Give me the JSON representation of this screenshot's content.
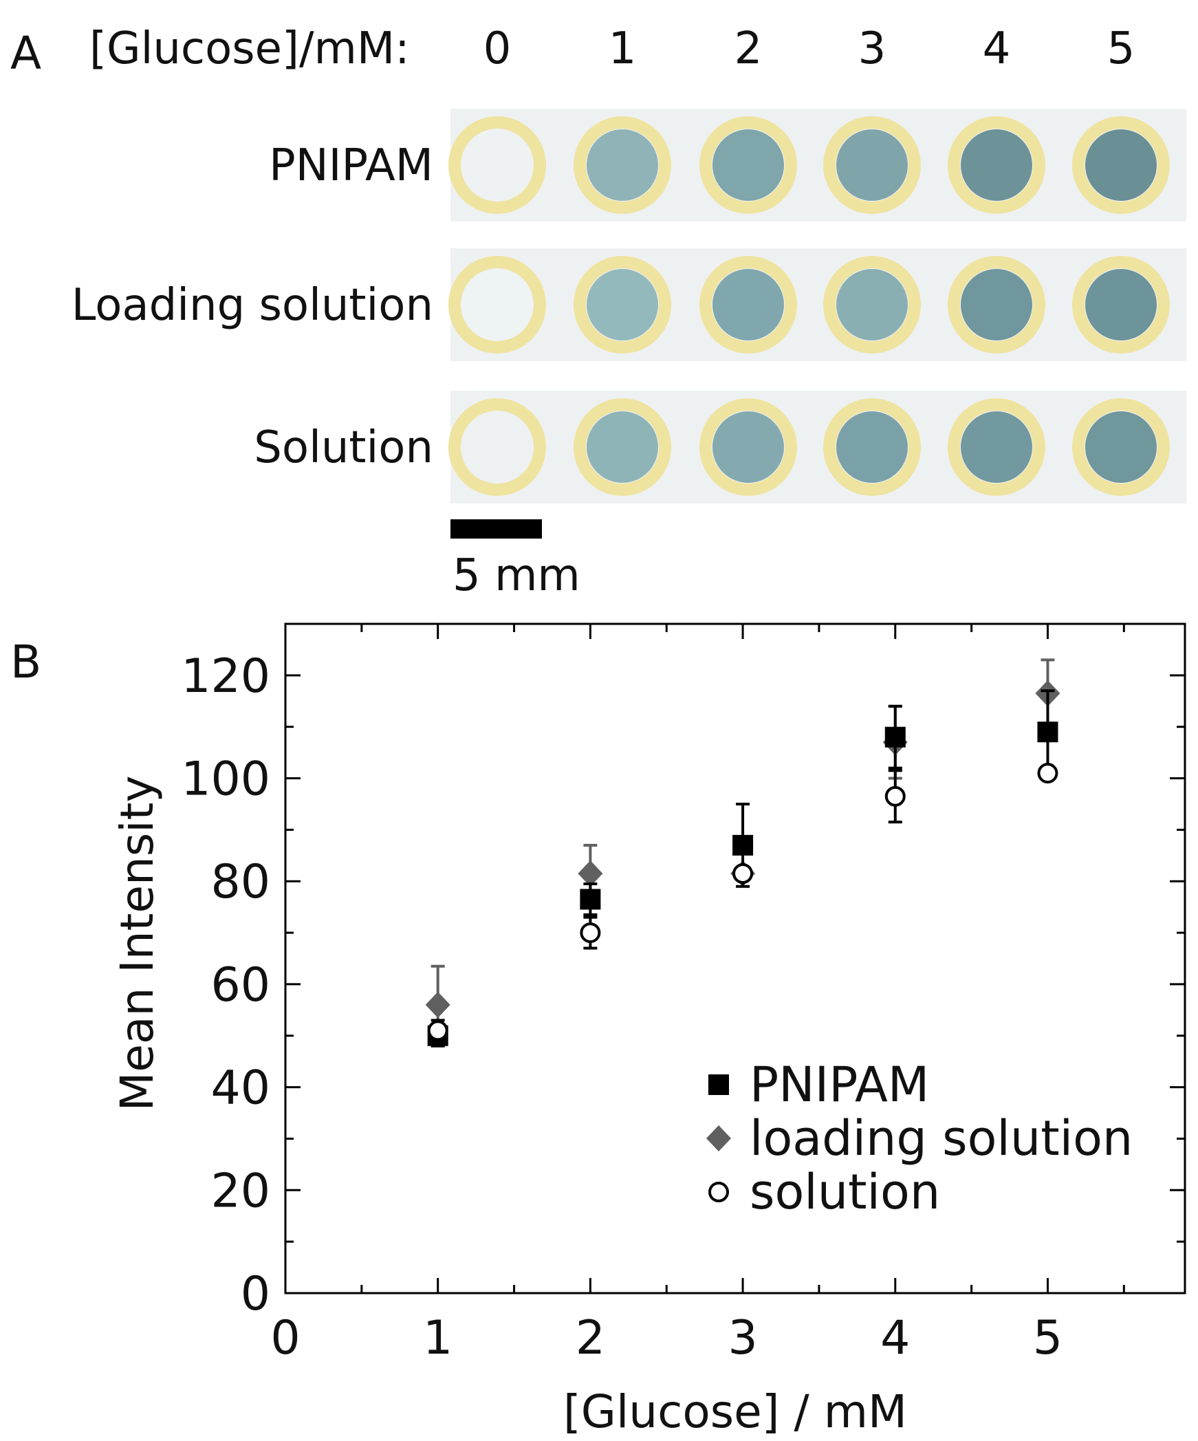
{
  "panel_a": {
    "letter": "A",
    "header_label": "[Glucose]/mM:",
    "concentrations": [
      "0",
      "1",
      "2",
      "3",
      "4",
      "5"
    ],
    "rows": [
      {
        "label": "PNIPAM",
        "spot_colors": [
          "#eef2f2",
          "#8fb3b7",
          "#7ea6ab",
          "#7fa5aa",
          "#6d9399",
          "#6a8f95"
        ]
      },
      {
        "label": "Loading solution",
        "spot_colors": [
          "#eef3f3",
          "#93b9bc",
          "#7fa7ad",
          "#89afb3",
          "#6f979d",
          "#6c949a"
        ]
      },
      {
        "label": "Solution",
        "spot_colors": [
          "#edf1f1",
          "#8fb4b8",
          "#84aab0",
          "#7aa1a7",
          "#71999f",
          "#6f979c"
        ]
      }
    ],
    "ring_color": "#efe3a0",
    "strip_color": "#eef1f2",
    "scale_bar_label": "5 mm"
  },
  "panel_b": {
    "letter": "B"
  },
  "chart_data": {
    "type": "scatter",
    "title": "",
    "xlabel": "[Glucose] / mM",
    "ylabel": "Mean Intensity",
    "xlim": [
      0,
      5.9
    ],
    "ylim": [
      0,
      130
    ],
    "x_ticks": [
      0,
      1,
      2,
      3,
      4,
      5
    ],
    "y_ticks": [
      0,
      20,
      40,
      60,
      80,
      100,
      120
    ],
    "legend_position": "bottom-right",
    "grid": false,
    "series": [
      {
        "name": "PNIPAM",
        "marker": "square",
        "color": "#000000",
        "points": [
          {
            "x": 1,
            "y": 50,
            "err": 2
          },
          {
            "x": 2,
            "y": 76.5,
            "err": 3
          },
          {
            "x": 3,
            "y": 87,
            "err": 8
          },
          {
            "x": 4,
            "y": 108,
            "err": 6
          },
          {
            "x": 5,
            "y": 109,
            "err": 8
          }
        ]
      },
      {
        "name": "loading solution",
        "marker": "diamond",
        "color": "#606060",
        "points": [
          {
            "x": 1,
            "y": 56,
            "err": 7.5
          },
          {
            "x": 2,
            "y": 81.5,
            "err": 5.5
          },
          {
            "x": 3,
            "y": 81.5,
            "err": 1
          },
          {
            "x": 4,
            "y": 107,
            "err": 7
          },
          {
            "x": 5,
            "y": 116.5,
            "err": 6.5
          }
        ]
      },
      {
        "name": "solution",
        "marker": "circle-open",
        "color": "#000000",
        "points": [
          {
            "x": 1,
            "y": 51,
            "err": 2
          },
          {
            "x": 2,
            "y": 70,
            "err": 3
          },
          {
            "x": 3,
            "y": 81.5,
            "err": 1
          },
          {
            "x": 4,
            "y": 96.5,
            "err": 5
          },
          {
            "x": 5,
            "y": 101,
            "err": 1
          }
        ]
      }
    ]
  }
}
